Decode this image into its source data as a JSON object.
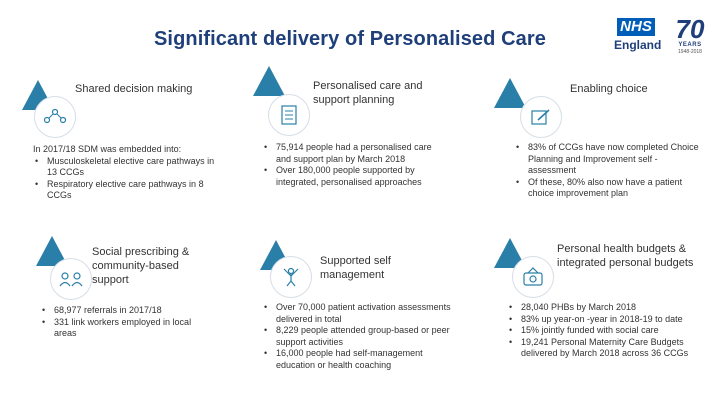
{
  "title": "Significant delivery of Personalised Care",
  "logo": {
    "nhs": "NHS",
    "region": "England",
    "years_num": "70",
    "years_word": "YEARS",
    "years_range": "1948-2018"
  },
  "sections": {
    "sdm": {
      "heading": "Shared decision making",
      "intro": "In 2017/18 SDM was embedded into:",
      "bullets": [
        "Musculoskeletal elective care pathways in 13 CCGs",
        "Respiratory elective care pathways in 8 CCGs"
      ],
      "icon": "people-network-icon"
    },
    "pcsp": {
      "heading": "Personalised care and support planning",
      "bullets": [
        "75,914 people had a personalised care and support plan by March 2018",
        "Over 180,000 people supported by integrated, personalised approaches"
      ],
      "icon": "checklist-icon"
    },
    "choice": {
      "heading": "Enabling choice",
      "bullets": [
        "83% of CCGs have now completed Choice Planning and Improvement self -assessment",
        "Of these, 80% also now have a patient choice improvement plan"
      ],
      "icon": "pen-document-icon"
    },
    "social": {
      "heading": "Social prescribing & community-based support",
      "bullets": [
        "68,977 referrals in 2017/18",
        "331 link workers employed in local areas"
      ],
      "icon": "community-icon"
    },
    "selfmgmt": {
      "heading": "Supported self management",
      "bullets": [
        "Over 70,000 patient activation assessments delivered in total",
        "8,229 people attended group-based or peer support activities",
        "16,000 people had self-management education or health coaching"
      ],
      "icon": "person-raised-arms-icon"
    },
    "budgets": {
      "heading": "Personal health budgets & integrated personal budgets",
      "bullets": [
        "28,040 PHBs by March 2018",
        "83% up year-on -year in 2018-19 to date",
        "15% jointly funded with social care",
        "19,241 Personal Maternity Care Budgets delivered by March 2018 across 36 CCGs"
      ],
      "icon": "budget-icon"
    }
  }
}
